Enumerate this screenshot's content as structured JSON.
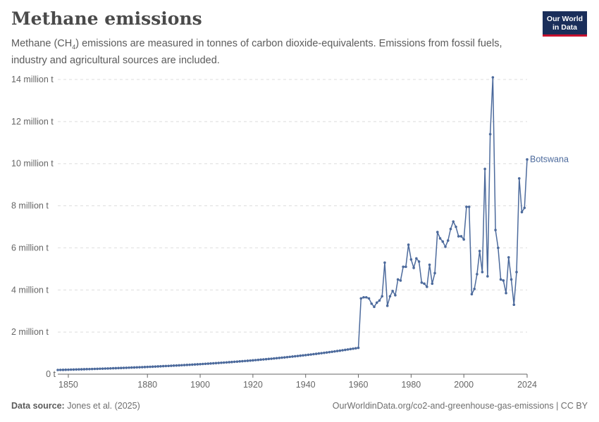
{
  "header": {
    "title": "Methane emissions",
    "subtitle_part1": "Methane (CH",
    "subtitle_sub": "4",
    "subtitle_part2": ") emissions are measured in tonnes of carbon dioxide-equivalents. Emissions from fossil fuels, industry and agricultural sources are included."
  },
  "logo": {
    "line1": "Our World",
    "line2": "in Data"
  },
  "footer": {
    "source_label": "Data source:",
    "source_value": "Jones et al. (2025)",
    "url_license": "OurWorldinData.org/co2-and-greenhouse-gas-emissions | CC BY"
  },
  "colors": {
    "line": "#4c6a9c",
    "grid": "#dddddd",
    "axis": "#666666"
  },
  "chart_data": {
    "type": "line",
    "title": "Methane emissions",
    "xlabel": "",
    "ylabel": "",
    "xlim": [
      1846,
      2024
    ],
    "ylim": [
      0,
      14000000
    ],
    "x_ticks": [
      1850,
      1880,
      1900,
      1920,
      1940,
      1960,
      1980,
      2000,
      2024
    ],
    "y_ticks": [
      {
        "value": 0,
        "label": "0 t"
      },
      {
        "value": 2000000,
        "label": "2 million t"
      },
      {
        "value": 4000000,
        "label": "4 million t"
      },
      {
        "value": 6000000,
        "label": "6 million t"
      },
      {
        "value": 8000000,
        "label": "8 million t"
      },
      {
        "value": 10000000,
        "label": "10 million t"
      },
      {
        "value": 12000000,
        "label": "12 million t"
      },
      {
        "value": 14000000,
        "label": "14 million t"
      }
    ],
    "grid": true,
    "series": [
      {
        "name": "Botswana",
        "early_start": [
          1846,
          200000
        ],
        "early_end": [
          1960,
          1250000
        ],
        "x": [
          1961,
          1962,
          1963,
          1964,
          1965,
          1966,
          1967,
          1968,
          1969,
          1970,
          1971,
          1972,
          1973,
          1974,
          1975,
          1976,
          1977,
          1978,
          1979,
          1980,
          1981,
          1982,
          1983,
          1984,
          1985,
          1986,
          1987,
          1988,
          1989,
          1990,
          1991,
          1992,
          1993,
          1994,
          1995,
          1996,
          1997,
          1998,
          1999,
          2000,
          2001,
          2002,
          2003,
          2004,
          2005,
          2006,
          2007,
          2008,
          2009,
          2010,
          2011,
          2012,
          2013,
          2014,
          2015,
          2016,
          2017,
          2018,
          2019,
          2020,
          2021,
          2022,
          2023,
          2024
        ],
        "y": [
          3600000,
          3650000,
          3650000,
          3600000,
          3350000,
          3200000,
          3400000,
          3500000,
          3700000,
          5300000,
          3250000,
          3700000,
          3950000,
          3750000,
          4500000,
          4450000,
          5100000,
          5100000,
          6150000,
          5450000,
          5050000,
          5500000,
          5350000,
          4350000,
          4300000,
          4150000,
          5200000,
          4300000,
          4800000,
          6750000,
          6450000,
          6300000,
          6050000,
          6350000,
          6900000,
          7250000,
          7000000,
          6550000,
          6550000,
          6400000,
          7950000,
          7950000,
          3800000,
          4050000,
          4750000,
          5850000,
          4850000,
          9750000,
          4650000,
          11400000,
          14100000,
          6850000,
          6000000,
          4500000,
          4450000,
          3850000,
          5550000,
          4500000,
          3300000,
          4850000,
          9300000,
          7700000,
          7900000,
          10200000
        ]
      }
    ]
  }
}
